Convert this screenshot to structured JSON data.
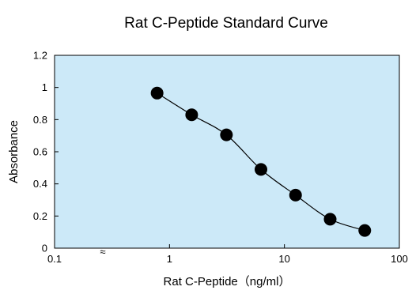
{
  "chart_data": {
    "type": "scatter",
    "title": "Rat C-Peptide Standard Curve",
    "xlabel": "Rat C-Peptide（ng/ml）",
    "ylabel": "Absorbance",
    "x_scale": "log",
    "xlim": [
      0.1,
      100
    ],
    "ylim": [
      0,
      1.2
    ],
    "x_tick_labels": [
      "0.1",
      "1",
      "10",
      "100"
    ],
    "y_tick_labels": [
      "0",
      "0.2",
      "0.4",
      "0.6",
      "0.8",
      "1",
      "1.2"
    ],
    "grid": false,
    "plot_background": "#cce9f8",
    "axis_break_symbol": "≈",
    "series": [
      {
        "x": [
          0.78,
          1.56,
          3.13,
          6.25,
          12.5,
          25,
          50
        ],
        "y": [
          0.965,
          0.83,
          0.705,
          0.49,
          0.33,
          0.18,
          0.11
        ],
        "marker": "filled-circle",
        "marker_color": "#000000",
        "line": "smooth",
        "line_color": "#000000"
      }
    ]
  }
}
